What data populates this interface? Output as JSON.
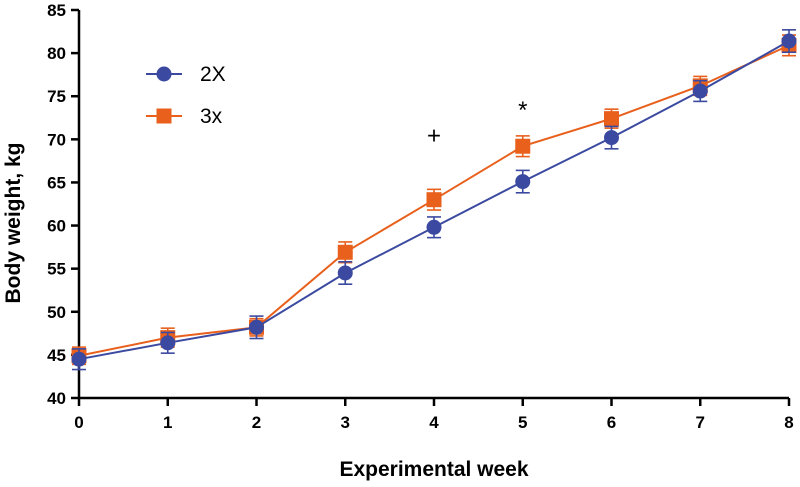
{
  "chart_data": {
    "type": "line",
    "title": "",
    "xlabel": "Experimental week",
    "ylabel": "Body weight, kg",
    "x": [
      0,
      1,
      2,
      3,
      4,
      5,
      6,
      7,
      8
    ],
    "xlim": [
      0,
      8
    ],
    "ylim": [
      40,
      85
    ],
    "xticks": [
      0,
      1,
      2,
      3,
      4,
      5,
      6,
      7,
      8
    ],
    "yticks": [
      40,
      45,
      50,
      55,
      60,
      65,
      70,
      75,
      80,
      85
    ],
    "grid": false,
    "legend_position": "top-left",
    "series": [
      {
        "name": "2X",
        "marker": "circle",
        "color": "#3b4aa0",
        "values": [
          44.5,
          46.4,
          48.2,
          54.5,
          59.8,
          65.1,
          70.2,
          75.6,
          81.4
        ],
        "errors": [
          1.2,
          1.2,
          1.3,
          1.3,
          1.2,
          1.3,
          1.3,
          1.2,
          1.3
        ]
      },
      {
        "name": "3x",
        "marker": "square",
        "color": "#e8601c",
        "values": [
          44.9,
          47.0,
          48.2,
          56.9,
          63.0,
          69.2,
          72.4,
          76.2,
          80.9
        ],
        "errors": [
          1.0,
          1.1,
          1.0,
          1.2,
          1.2,
          1.2,
          1.1,
          1.1,
          1.2
        ]
      }
    ],
    "annotations": [
      {
        "text": "+",
        "x": 4,
        "y": 69.5
      },
      {
        "text": "*",
        "x": 5,
        "y": 72.5
      }
    ]
  }
}
